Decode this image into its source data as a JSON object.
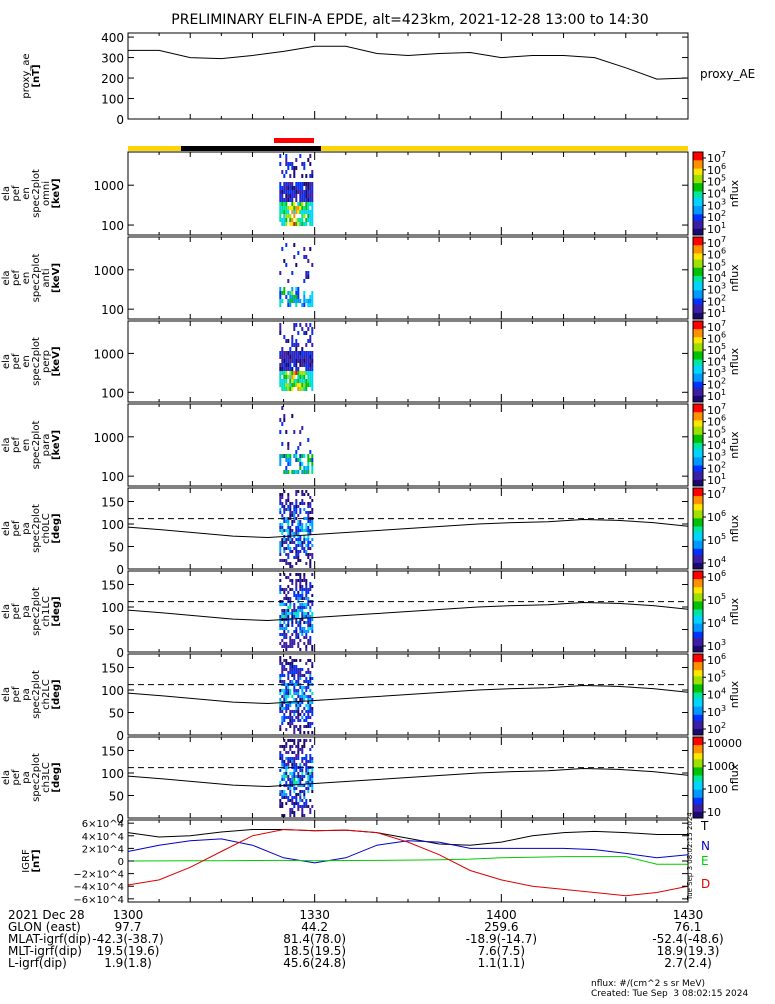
{
  "title": "PRELIMINARY ELFIN-A EPDE, alt=423km, 2021-12-28 13:00 to 14:30",
  "colors": {
    "axis": "#000000",
    "science_bar": "#ffd400",
    "eclipse_bar": "#000000",
    "epd_bar": "#ff0000",
    "igrf_T": "#000000",
    "igrf_N": "#0000cc",
    "igrf_E": "#00cc00",
    "igrf_D": "#dd0000"
  },
  "chart_data": [
    {
      "type": "line",
      "panel": "proxy_ae",
      "ylabel": [
        "proxy_ae",
        "[nT]"
      ],
      "yticks": [
        "400",
        "300",
        "200",
        "100",
        "0"
      ],
      "ylim": [
        0,
        420
      ],
      "legend": "proxy_AE",
      "x_minutes": [
        0,
        5,
        10,
        15,
        20,
        25,
        30,
        35,
        40,
        45,
        50,
        55,
        60,
        65,
        70,
        75,
        80,
        85,
        90
      ],
      "values": [
        335,
        335,
        300,
        295,
        310,
        330,
        355,
        355,
        320,
        310,
        320,
        325,
        300,
        310,
        310,
        300,
        250,
        195,
        200
      ]
    },
    {
      "type": "heatmap",
      "panel": "spec-omni",
      "ylabel": [
        "ela",
        "pef",
        "en",
        "spec2plot",
        "omni",
        "[keV]"
      ],
      "yticks": [
        "1000",
        "100"
      ],
      "cbar_ticks": [
        "10^7",
        "10^6",
        "10^5",
        "10^4",
        "10^3",
        "10^2",
        "10^1"
      ],
      "cbar_label": "nflux",
      "activity_minutes": [
        24,
        30
      ]
    },
    {
      "type": "heatmap",
      "panel": "spec-anti",
      "ylabel": [
        "ela",
        "pef",
        "en",
        "spec2plot",
        "anti",
        "[keV]"
      ],
      "yticks": [
        "1000",
        "100"
      ],
      "cbar_ticks": [
        "10^7",
        "10^6",
        "10^5",
        "10^4",
        "10^3",
        "10^2",
        "10^1"
      ],
      "cbar_label": "nflux",
      "activity_minutes": [
        24,
        30
      ]
    },
    {
      "type": "heatmap",
      "panel": "spec-perp",
      "ylabel": [
        "ela",
        "pef",
        "en",
        "spec2plot",
        "perp",
        "[keV]"
      ],
      "yticks": [
        "1000",
        "100"
      ],
      "cbar_ticks": [
        "10^7",
        "10^6",
        "10^5",
        "10^4",
        "10^3",
        "10^2",
        "10^1"
      ],
      "cbar_label": "nflux",
      "activity_minutes": [
        24,
        30
      ]
    },
    {
      "type": "heatmap",
      "panel": "spec-para",
      "ylabel": [
        "ela",
        "pef",
        "en",
        "spec2plot",
        "para",
        "[keV]"
      ],
      "yticks": [
        "1000",
        "100"
      ],
      "cbar_ticks": [
        "10^7",
        "10^6",
        "10^5",
        "10^4",
        "10^3",
        "10^2",
        "10^1"
      ],
      "cbar_label": "nflux",
      "activity_minutes": [
        24,
        30
      ]
    },
    {
      "type": "heatmap",
      "panel": "pa-ch0",
      "ylabel": [
        "ela",
        "pef",
        "pa",
        "spec2plot",
        "ch0LC",
        "[deg]"
      ],
      "yticks": [
        "150",
        "100",
        "50",
        "0"
      ],
      "ylim": [
        0,
        180
      ],
      "cbar_ticks": [
        "10^7",
        "10^6",
        "10^5",
        "10^4"
      ],
      "cbar_label": "nflux",
      "losscone_deg": [
        93,
        87,
        80,
        73,
        70,
        75,
        80,
        85,
        90,
        95,
        100,
        103,
        105,
        110,
        108,
        103,
        95
      ],
      "anti_losscone_deg": 112
    },
    {
      "type": "heatmap",
      "panel": "pa-ch1",
      "ylabel": [
        "ela",
        "pef",
        "pa",
        "spec2plot",
        "ch1LC",
        "[deg]"
      ],
      "yticks": [
        "150",
        "100",
        "50",
        "0"
      ],
      "ylim": [
        0,
        180
      ],
      "cbar_ticks": [
        "10^6",
        "10^5",
        "10^4",
        "10^3"
      ],
      "cbar_label": "nflux",
      "losscone_deg": [
        93,
        87,
        80,
        73,
        70,
        75,
        80,
        85,
        90,
        95,
        100,
        103,
        105,
        110,
        108,
        103,
        95
      ],
      "anti_losscone_deg": 112
    },
    {
      "type": "heatmap",
      "panel": "pa-ch2",
      "ylabel": [
        "ela",
        "pef",
        "pa",
        "spec2plot",
        "ch2LC",
        "[deg]"
      ],
      "yticks": [
        "150",
        "100",
        "50",
        "0"
      ],
      "ylim": [
        0,
        180
      ],
      "cbar_ticks": [
        "10^6",
        "10^5",
        "10^4",
        "10^3",
        "10^2"
      ],
      "cbar_label": "nflux",
      "losscone_deg": [
        93,
        87,
        80,
        73,
        70,
        75,
        80,
        85,
        90,
        95,
        100,
        103,
        105,
        110,
        108,
        103,
        95
      ],
      "anti_losscone_deg": 112
    },
    {
      "type": "heatmap",
      "panel": "pa-ch3",
      "ylabel": [
        "ela",
        "pef",
        "pa",
        "spec2plot",
        "ch3LC",
        "[deg]"
      ],
      "yticks": [
        "150",
        "100",
        "50",
        "0"
      ],
      "ylim": [
        0,
        180
      ],
      "cbar_ticks": [
        "10000",
        "1000",
        "100",
        "10"
      ],
      "cbar_label": "nflux",
      "losscone_deg": [
        93,
        87,
        80,
        73,
        70,
        75,
        80,
        85,
        90,
        95,
        100,
        103,
        105,
        110,
        108,
        103,
        95
      ],
      "anti_losscone_deg": 112
    },
    {
      "type": "line",
      "panel": "igrf",
      "ylabel": [
        "IGRF",
        "[nT]"
      ],
      "yticks": [
        "6×10^4",
        "4×10^4",
        "2×10^4",
        "0",
        "−2×10^4",
        "−4×10^4",
        "−6×10^4"
      ],
      "ylim": [
        -65000,
        65000
      ],
      "x_minutes": [
        0,
        5,
        10,
        15,
        20,
        25,
        30,
        35,
        40,
        45,
        50,
        55,
        60,
        65,
        70,
        75,
        80,
        85,
        90
      ],
      "series": [
        {
          "name": "T",
          "values": [
            45000,
            38000,
            40000,
            46000,
            50000,
            50000,
            48000,
            49000,
            45000,
            36000,
            27000,
            25000,
            30000,
            40000,
            45000,
            47000,
            45000,
            42000,
            42000
          ]
        },
        {
          "name": "N",
          "values": [
            15000,
            25000,
            32000,
            35000,
            25000,
            5000,
            -3000,
            5000,
            25000,
            32000,
            30000,
            20000,
            20000,
            20000,
            20000,
            18000,
            12000,
            5000,
            10000
          ]
        },
        {
          "name": "E",
          "values": [
            0,
            100,
            300,
            500,
            800,
            1000,
            500,
            800,
            1000,
            1500,
            2000,
            3000,
            5000,
            6000,
            7000,
            7000,
            7000,
            -5000,
            -5000
          ]
        },
        {
          "name": "D",
          "values": [
            -38000,
            -30000,
            -10000,
            15000,
            40000,
            50000,
            48000,
            49000,
            45000,
            30000,
            10000,
            -15000,
            -30000,
            -40000,
            -45000,
            -50000,
            -55000,
            -50000,
            -40000
          ]
        }
      ]
    }
  ],
  "timestamp": "Tue Sep  3 08:02:15 2024",
  "ephemeris": {
    "rows": [
      {
        "label": "2021 Dec 28",
        "values": [
          "1300",
          "1330",
          "1400",
          "1430"
        ]
      },
      {
        "label": "GLON (east)",
        "values": [
          "97.7",
          "44.2",
          "259.6",
          "76.1"
        ]
      },
      {
        "label": "MLAT-igrf(dip)",
        "values": [
          "-42.3(-38.7)",
          "81.4(78.0)",
          "-18.9(-14.7)",
          "-52.4(-48.6)"
        ]
      },
      {
        "label": "MLT-igrf(dip)",
        "values": [
          "19.5(19.6)",
          "18.5(19.5)",
          "7.6(7.5)",
          "18.9(19.3)"
        ]
      },
      {
        "label": "L-igrf(dip)",
        "values": [
          "1.9(1.8)",
          "45.6(24.8)",
          "1.1(1.1)",
          "2.7(2.4)"
        ]
      }
    ]
  },
  "footer": {
    "units": "nflux: #/(cm^2 s sr MeV)",
    "created": "Created: Tue Sep  3 08:02:15 2024"
  }
}
